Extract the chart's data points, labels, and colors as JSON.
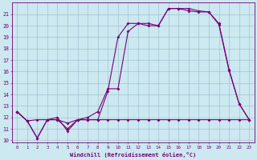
{
  "xlabel": "Windchill (Refroidissement éolien,°C)",
  "bg_color": "#cce8f0",
  "grid_color": "#99bbcc",
  "line_color": "#770077",
  "xmin": 0,
  "xmax": 23,
  "ymin": 10,
  "ymax": 21,
  "line1_x": [
    0,
    1,
    2,
    3,
    4,
    5,
    6,
    7,
    8,
    9,
    10,
    11,
    12,
    13,
    14,
    15,
    16,
    17,
    18,
    19,
    20,
    21,
    22,
    23
  ],
  "line1_y": [
    12.5,
    11.7,
    10.2,
    11.8,
    12.0,
    10.8,
    11.8,
    11.8,
    11.8,
    14.3,
    19.0,
    20.2,
    20.2,
    20.0,
    20.0,
    21.5,
    21.5,
    21.3,
    21.2,
    21.2,
    20.1,
    16.1,
    13.2,
    11.8
  ],
  "line2_x": [
    0,
    1,
    2,
    3,
    4,
    5,
    6,
    7,
    8,
    9,
    10,
    11,
    12,
    13,
    14,
    15,
    16,
    17,
    18,
    19,
    20,
    21,
    22,
    23
  ],
  "line2_y": [
    12.5,
    11.7,
    10.2,
    11.8,
    11.8,
    11.0,
    11.8,
    12.0,
    12.5,
    14.5,
    14.5,
    19.5,
    20.2,
    20.2,
    20.0,
    21.5,
    21.5,
    21.5,
    21.3,
    21.2,
    20.2,
    16.2,
    13.2,
    11.8
  ],
  "line3_x": [
    0,
    1,
    2,
    3,
    4,
    5,
    6,
    7,
    8,
    9,
    10,
    11,
    12,
    13,
    14,
    15,
    16,
    17,
    18,
    19,
    20,
    21,
    22,
    23
  ],
  "line3_y": [
    12.5,
    11.7,
    11.8,
    11.8,
    11.8,
    11.5,
    11.8,
    11.8,
    11.8,
    11.8,
    11.8,
    11.8,
    11.8,
    11.8,
    11.8,
    11.8,
    11.8,
    11.8,
    11.8,
    11.8,
    11.8,
    11.8,
    11.8,
    11.8
  ],
  "yticks": [
    10,
    11,
    12,
    13,
    14,
    15,
    16,
    17,
    18,
    19,
    20,
    21
  ],
  "xticks": [
    0,
    1,
    2,
    3,
    4,
    5,
    6,
    7,
    8,
    9,
    10,
    11,
    12,
    13,
    14,
    15,
    16,
    17,
    18,
    19,
    20,
    21,
    22,
    23
  ]
}
